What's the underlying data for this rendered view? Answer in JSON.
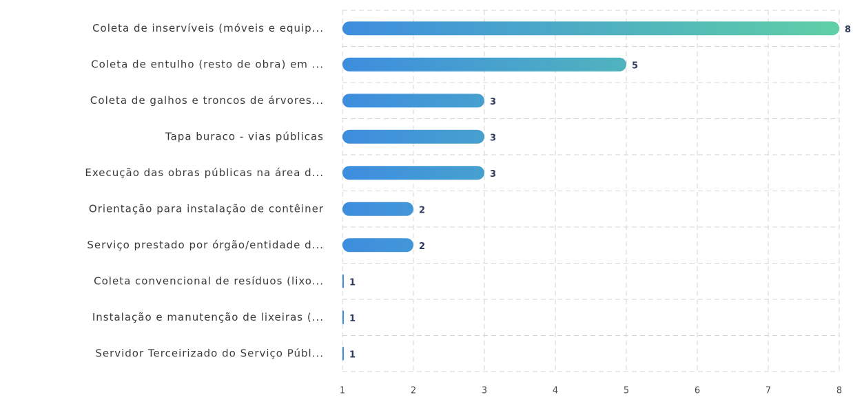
{
  "chart_data": {
    "type": "barh",
    "categories": [
      "Coleta de inservíveis (móveis e equip...",
      "Coleta de entulho (resto de obra) em ...",
      "Coleta de galhos e troncos de árvores...",
      "Tapa buraco - vias públicas",
      "Execução das obras públicas na área d...",
      "Orientação para instalação de contêiner",
      "Serviço prestado por órgão/entidade d...",
      "Coleta convencional de resíduos (lixo...",
      "Instalação e manutenção de lixeiras (...",
      "Servidor Terceirizado do Serviço Públ..."
    ],
    "values": [
      8,
      5,
      3,
      3,
      3,
      2,
      2,
      1,
      1,
      1
    ],
    "xlim": [
      1,
      8
    ],
    "xticks": [
      1,
      2,
      3,
      4,
      5,
      6,
      7,
      8
    ],
    "gradient": [
      "#3d8ddf",
      "#5ed0a5"
    ],
    "grid": true
  }
}
